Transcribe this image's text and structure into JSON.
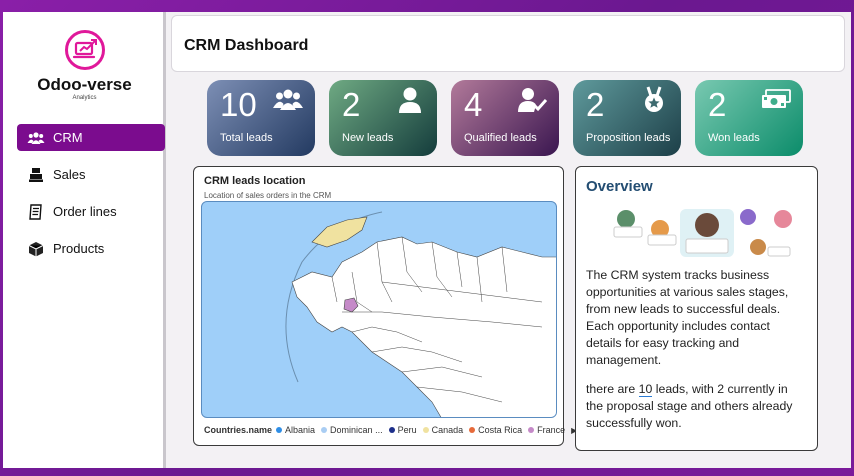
{
  "sidebar": {
    "logo": {
      "title": "Odoo-verse",
      "subtitle": "Analytics",
      "accent": "#e0189a"
    },
    "items": [
      {
        "label": "CRM",
        "icon": "users-icon",
        "active": true
      },
      {
        "label": "Sales",
        "icon": "cash-register-icon",
        "active": false
      },
      {
        "label": "Order lines",
        "icon": "receipt-icon",
        "active": false
      },
      {
        "label": "Products",
        "icon": "box-icon",
        "active": false
      }
    ]
  },
  "header": {
    "title": "CRM Dashboard"
  },
  "kpis": [
    {
      "value": "10",
      "label": "Total leads",
      "icon": "users-icon",
      "colors": [
        "#7d8fb5",
        "#233a61"
      ]
    },
    {
      "value": "2",
      "label": "New leads",
      "icon": "user-icon",
      "colors": [
        "#6faa83",
        "#143c3c"
      ]
    },
    {
      "value": "4",
      "label": "Qualified leads",
      "icon": "user-check-icon",
      "colors": [
        "#b27a9a",
        "#3a1650"
      ]
    },
    {
      "value": "2",
      "label": "Proposition leads",
      "icon": "award-icon",
      "colors": [
        "#5f9a9c",
        "#1d3f48"
      ]
    },
    {
      "value": "2",
      "label": "Won leads",
      "icon": "money-bills-icon",
      "colors": [
        "#79c9b1",
        "#0b8c6a"
      ]
    }
  ],
  "map_card": {
    "title": "CRM leads location",
    "subtitle": "Location of sales orders in the CRM",
    "legend_label": "Countries.name",
    "legend": [
      {
        "name": "Albania",
        "color": "#2f8ee6"
      },
      {
        "name": "Dominican ...",
        "color": "#a9cdf3"
      },
      {
        "name": "Peru",
        "color": "#1d2f8a"
      },
      {
        "name": "Canada",
        "color": "#f0e2a0"
      },
      {
        "name": "Costa Rica",
        "color": "#e66a3a"
      },
      {
        "name": "France",
        "color": "#c58ac8"
      }
    ],
    "ocean_color": "#9fcff9"
  },
  "overview": {
    "title": "Overview",
    "paragraph1": "The CRM system tracks business opportunities at various sales stages, from new leads to successful deals. Each opportunity includes contact details for easy tracking and management.",
    "p2_before": "there are ",
    "p2_count": "10",
    "p2_after": " leads, with 2 currently in the proposal stage and others already successfully won."
  }
}
